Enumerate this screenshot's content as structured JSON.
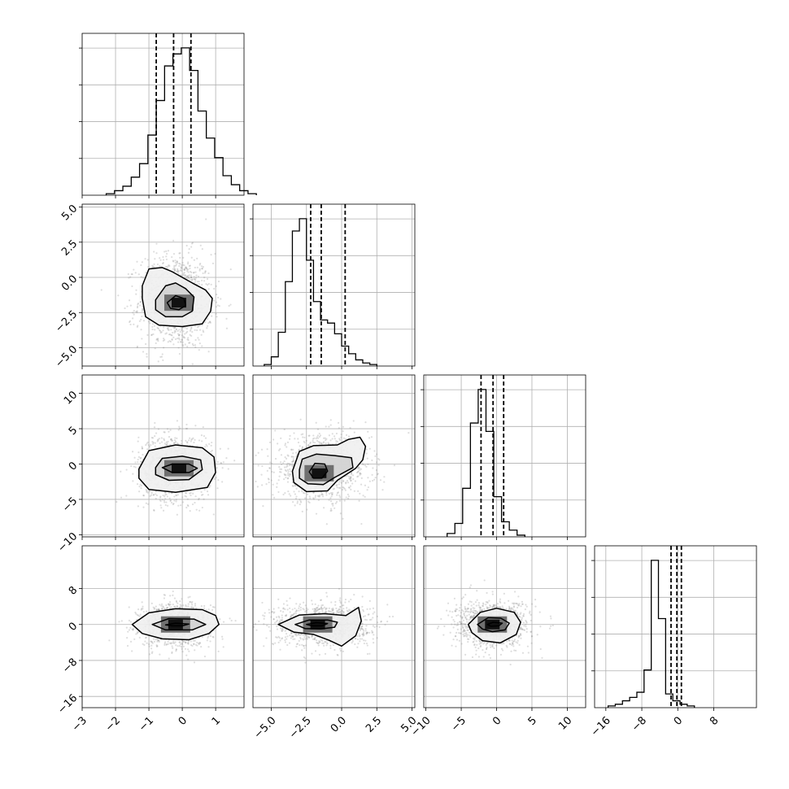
{
  "chart_data": {
    "type": "corner",
    "n_params": 4,
    "ranges": [
      [
        -3,
        1.85
      ],
      [
        -6.3,
        5.2
      ],
      [
        -10.3,
        12.6
      ],
      [
        -18.5,
        17.5
      ]
    ],
    "ticks": [
      {
        "values": [
          -3,
          -2,
          -1,
          0,
          1
        ],
        "labels": [
          "−3",
          "−2",
          "−1",
          "0",
          "1"
        ]
      },
      {
        "values": [
          -5,
          -2.5,
          0,
          2.5,
          5
        ],
        "labels": [
          "−5.0",
          "−2.5",
          "0.0",
          "2.5",
          "5.0"
        ]
      },
      {
        "values": [
          -10,
          -5,
          0,
          5,
          10
        ],
        "labels": [
          "−10",
          "−5",
          "0",
          "5",
          "10"
        ]
      },
      {
        "values": [
          -16,
          -8,
          0,
          8
        ],
        "labels": [
          "−16",
          "−8",
          "0",
          "8"
        ]
      }
    ],
    "marginals": [
      {
        "quantiles": [
          -0.78,
          -0.26,
          0.26
        ],
        "bin_width": 0.25,
        "bin_edges_start": -2.28,
        "counts": [
          0.01,
          0.03,
          0.06,
          0.12,
          0.21,
          0.4,
          0.63,
          0.86,
          0.94,
          0.98,
          0.83,
          0.56,
          0.38,
          0.25,
          0.13,
          0.07,
          0.03,
          0.01
        ]
      },
      {
        "quantiles": [
          -2.2,
          -1.45,
          0.25
        ],
        "bin_width": 0.5,
        "bin_edges_start": -5.5,
        "counts": [
          0.01,
          0.06,
          0.22,
          0.55,
          0.88,
          0.96,
          0.69,
          0.42,
          0.3,
          0.28,
          0.21,
          0.13,
          0.08,
          0.04,
          0.02,
          0.01
        ]
      },
      {
        "quantiles": [
          -2.2,
          -0.5,
          1.0
        ],
        "bin_width": 1.1,
        "bin_edges_start": -7.0,
        "counts": [
          0.02,
          0.08,
          0.29,
          0.68,
          0.88,
          0.63,
          0.24,
          0.09,
          0.04,
          0.01
        ]
      },
      {
        "quantiles": [
          -1.5,
          -0.2,
          0.8
        ],
        "bin_width": 1.6,
        "bin_edges_start": -15.5,
        "counts": [
          0.01,
          0.02,
          0.04,
          0.06,
          0.09,
          0.22,
          0.86,
          0.52,
          0.08,
          0.04,
          0.02,
          0.01
        ]
      }
    ],
    "joints": [
      {
        "x": 0,
        "y": 1,
        "center": [
          -0.2,
          -1.7
        ],
        "sigma": [
          0.55,
          1.7
        ],
        "peak_center": [
          -0.1,
          -1.8
        ],
        "contours": [
          {
            "level": "1sigma",
            "points": [
              [
                -0.45,
                -1.8
              ],
              [
                -0.2,
                -1.3
              ],
              [
                0.05,
                -1.5
              ],
              [
                0.1,
                -2.0
              ],
              [
                -0.1,
                -2.3
              ],
              [
                -0.35,
                -2.2
              ]
            ]
          },
          {
            "level": "1.5sigma",
            "points": [
              [
                -0.8,
                -1.6
              ],
              [
                -0.5,
                -0.6
              ],
              [
                -0.2,
                -0.4
              ],
              [
                0.1,
                -0.8
              ],
              [
                0.35,
                -1.4
              ],
              [
                0.3,
                -2.4
              ],
              [
                0.0,
                -2.8
              ],
              [
                -0.5,
                -2.8
              ],
              [
                -0.8,
                -2.3
              ]
            ]
          },
          {
            "level": "2sigma",
            "points": [
              [
                -1.2,
                -1.5
              ],
              [
                -1.2,
                -0.6
              ],
              [
                -1.0,
                0.6
              ],
              [
                -0.6,
                0.7
              ],
              [
                -0.3,
                0.4
              ],
              [
                0.0,
                0.0
              ],
              [
                0.3,
                -0.4
              ],
              [
                0.7,
                -0.9
              ],
              [
                0.9,
                -1.5
              ],
              [
                0.85,
                -2.4
              ],
              [
                0.6,
                -3.3
              ],
              [
                0.0,
                -3.5
              ],
              [
                -0.7,
                -3.4
              ],
              [
                -1.1,
                -2.8
              ]
            ]
          }
        ]
      },
      {
        "x": 0,
        "y": 2,
        "center": [
          -0.2,
          -0.5
        ],
        "sigma": [
          0.55,
          2.3
        ],
        "peak_center": [
          -0.1,
          -0.6
        ],
        "contours": [
          {
            "level": "1sigma",
            "points": [
              [
                -0.6,
                -0.5
              ],
              [
                -0.3,
                0.0
              ],
              [
                0.2,
                0.0
              ],
              [
                0.45,
                -0.6
              ],
              [
                0.2,
                -1.2
              ],
              [
                -0.3,
                -1.2
              ]
            ]
          },
          {
            "level": "1.5sigma",
            "points": [
              [
                -0.8,
                -0.5
              ],
              [
                -0.6,
                0.8
              ],
              [
                0.0,
                1.1
              ],
              [
                0.55,
                0.6
              ],
              [
                0.6,
                -0.8
              ],
              [
                0.2,
                -2.2
              ],
              [
                -0.4,
                -2.3
              ],
              [
                -0.8,
                -1.5
              ]
            ]
          },
          {
            "level": "2sigma",
            "points": [
              [
                -1.3,
                -0.7
              ],
              [
                -1.0,
                1.9
              ],
              [
                -0.2,
                2.7
              ],
              [
                0.6,
                2.3
              ],
              [
                0.95,
                1.0
              ],
              [
                1.0,
                -1.2
              ],
              [
                0.75,
                -3.3
              ],
              [
                -0.2,
                -4.0
              ],
              [
                -1.0,
                -3.6
              ],
              [
                -1.3,
                -2.0
              ]
            ]
          }
        ]
      },
      {
        "x": 0,
        "y": 3,
        "center": [
          -0.2,
          0.0
        ],
        "sigma": [
          0.55,
          2.4
        ],
        "peak_center": [
          -0.2,
          0.0
        ],
        "contours": [
          {
            "level": "1sigma",
            "points": [
              [
                -0.5,
                -0.1
              ],
              [
                -0.2,
                0.3
              ],
              [
                0.2,
                0.1
              ],
              [
                0.0,
                -0.3
              ],
              [
                -0.3,
                -0.3
              ]
            ]
          },
          {
            "level": "1.5sigma",
            "points": [
              [
                -0.9,
                0.0
              ],
              [
                -0.4,
                1.3
              ],
              [
                0.35,
                1.2
              ],
              [
                0.7,
                0.0
              ],
              [
                0.3,
                -1.2
              ],
              [
                -0.5,
                -1.2
              ]
            ]
          },
          {
            "level": "2sigma",
            "points": [
              [
                -1.5,
                0.0
              ],
              [
                -1.0,
                2.6
              ],
              [
                -0.2,
                3.5
              ],
              [
                0.6,
                3.3
              ],
              [
                1.0,
                2.0
              ],
              [
                1.1,
                0.0
              ],
              [
                0.8,
                -2.0
              ],
              [
                0.2,
                -3.4
              ],
              [
                -0.6,
                -3.2
              ],
              [
                -1.2,
                -2.0
              ]
            ]
          }
        ]
      },
      {
        "x": 1,
        "y": 2,
        "center": [
          -1.4,
          -0.6
        ],
        "sigma": [
          1.7,
          2.3
        ],
        "peak_center": [
          -1.6,
          -1.3
        ],
        "contours": [
          {
            "level": "1sigma",
            "points": [
              [
                -2.3,
                -1.1
              ],
              [
                -1.9,
                0.1
              ],
              [
                -1.2,
                0.0
              ],
              [
                -1.0,
                -1.0
              ],
              [
                -1.4,
                -2.0
              ],
              [
                -2.0,
                -2.0
              ]
            ]
          },
          {
            "level": "1.5sigma",
            "points": [
              [
                -3.0,
                -0.8
              ],
              [
                -2.8,
                0.7
              ],
              [
                -1.8,
                1.4
              ],
              [
                -0.5,
                1.2
              ],
              [
                0.7,
                0.9
              ],
              [
                0.8,
                -0.5
              ],
              [
                -0.5,
                -1.9
              ],
              [
                -1.3,
                -2.9
              ],
              [
                -2.4,
                -2.8
              ],
              [
                -3.0,
                -2.0
              ]
            ]
          },
          {
            "level": "2sigma",
            "points": [
              [
                -3.5,
                -1.0
              ],
              [
                -3.0,
                1.8
              ],
              [
                -2.0,
                2.6
              ],
              [
                -0.3,
                2.7
              ],
              [
                0.5,
                3.5
              ],
              [
                1.3,
                3.8
              ],
              [
                1.7,
                2.5
              ],
              [
                1.5,
                0.6
              ],
              [
                1.0,
                -0.6
              ],
              [
                -0.3,
                -2.3
              ],
              [
                -1.0,
                -3.8
              ],
              [
                -2.5,
                -3.9
              ],
              [
                -3.4,
                -2.6
              ]
            ]
          }
        ]
      },
      {
        "x": 1,
        "y": 3,
        "center": [
          -1.4,
          0.0
        ],
        "sigma": [
          1.7,
          2.4
        ],
        "peak_center": [
          -1.7,
          0.0
        ],
        "contours": [
          {
            "level": "1sigma",
            "points": [
              [
                -2.5,
                0.0
              ],
              [
                -1.8,
                0.4
              ],
              [
                -1.0,
                0.2
              ],
              [
                -1.4,
                -0.3
              ],
              [
                -2.1,
                -0.3
              ]
            ]
          },
          {
            "level": "1.5sigma",
            "points": [
              [
                -3.3,
                0.0
              ],
              [
                -2.3,
                1.0
              ],
              [
                -1.0,
                1.0
              ],
              [
                -0.3,
                0.5
              ],
              [
                -0.5,
                -0.6
              ],
              [
                -1.5,
                -1.0
              ],
              [
                -2.6,
                -0.9
              ]
            ]
          },
          {
            "level": "2sigma",
            "points": [
              [
                -4.5,
                0.0
              ],
              [
                -3.0,
                2.1
              ],
              [
                -1.2,
                2.4
              ],
              [
                0.3,
                2.0
              ],
              [
                1.2,
                3.8
              ],
              [
                1.4,
                0.8
              ],
              [
                1.0,
                -2.5
              ],
              [
                0.0,
                -4.8
              ],
              [
                -0.9,
                -3.5
              ],
              [
                -2.0,
                -2.2
              ],
              [
                -3.4,
                -1.7
              ]
            ]
          }
        ]
      },
      {
        "x": 2,
        "y": 3,
        "center": [
          -0.6,
          0.0
        ],
        "sigma": [
          2.6,
          2.6
        ],
        "peak_center": [
          -0.6,
          0.0
        ],
        "contours": [
          {
            "level": "1sigma",
            "points": [
              [
                -1.3,
                0.0
              ],
              [
                -0.5,
                0.5
              ],
              [
                0.8,
                0.3
              ],
              [
                0.3,
                -0.3
              ],
              [
                -0.8,
                -0.4
              ]
            ]
          },
          {
            "level": "1.5sigma",
            "points": [
              [
                -2.7,
                0.0
              ],
              [
                -1.2,
                1.5
              ],
              [
                0.6,
                1.4
              ],
              [
                1.8,
                0.3
              ],
              [
                1.2,
                -1.2
              ],
              [
                -0.6,
                -1.6
              ],
              [
                -2.0,
                -1.0
              ]
            ]
          },
          {
            "level": "2sigma",
            "points": [
              [
                -4.0,
                0.0
              ],
              [
                -2.3,
                2.7
              ],
              [
                0.0,
                3.6
              ],
              [
                2.5,
                2.7
              ],
              [
                3.4,
                0.5
              ],
              [
                2.8,
                -2.2
              ],
              [
                0.5,
                -4.1
              ],
              [
                -2.0,
                -3.6
              ],
              [
                -3.5,
                -1.8
              ]
            ]
          }
        ]
      }
    ]
  }
}
